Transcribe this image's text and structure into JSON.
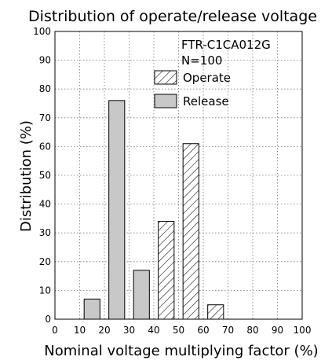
{
  "chart_data": {
    "type": "bar",
    "title": "Distribution of operate/release voltage",
    "xlabel": "Nominal voltage multiplying factor (%)",
    "ylabel": "Distribution (%)",
    "xlim": [
      0,
      100
    ],
    "ylim": [
      0,
      100
    ],
    "xticks": [
      "0",
      "10",
      "20",
      "30",
      "40",
      "50",
      "60",
      "70",
      "80",
      "90",
      "100"
    ],
    "yticks": [
      "0",
      "10",
      "20",
      "30",
      "40",
      "50",
      "60",
      "70",
      "80",
      "90",
      "100"
    ],
    "grid": true,
    "annotation_lines": [
      "FTR-C1CA012G",
      "N=100"
    ],
    "legend_position": "top-right",
    "series": [
      {
        "name": "Operate",
        "pattern": "hatched",
        "bars": [
          {
            "x": 45,
            "value": 34
          },
          {
            "x": 55,
            "value": 61
          },
          {
            "x": 65,
            "value": 5
          }
        ]
      },
      {
        "name": "Release",
        "pattern": "solid",
        "color": "#c8c8c8",
        "bars": [
          {
            "x": 15,
            "value": 7
          },
          {
            "x": 25,
            "value": 76
          },
          {
            "x": 35,
            "value": 17
          }
        ]
      }
    ]
  }
}
